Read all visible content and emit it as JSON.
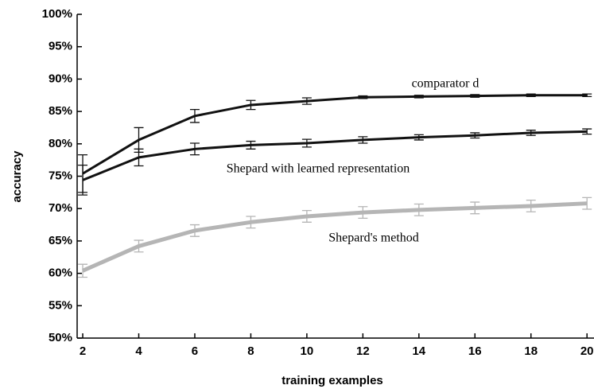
{
  "chart_data": {
    "type": "line",
    "xlabel": "training examples",
    "ylabel": "accuracy",
    "x": [
      2,
      4,
      6,
      8,
      10,
      12,
      14,
      16,
      18,
      20
    ],
    "series": [
      {
        "name": "comparator d",
        "color": "#111111",
        "values": [
          75.4,
          80.6,
          84.3,
          86.0,
          86.6,
          87.2,
          87.3,
          87.4,
          87.5,
          87.5
        ],
        "errors": [
          2.9,
          1.9,
          1.0,
          0.7,
          0.5,
          0.2,
          0.2,
          0.2,
          0.2,
          0.2
        ]
      },
      {
        "name": "Shepard with learned representation",
        "color": "#111111",
        "values": [
          74.4,
          77.9,
          79.2,
          79.8,
          80.1,
          80.6,
          81.0,
          81.3,
          81.7,
          81.9
        ],
        "errors": [
          2.3,
          1.3,
          0.9,
          0.6,
          0.6,
          0.5,
          0.4,
          0.4,
          0.4,
          0.4
        ]
      },
      {
        "name": "Shepard's method",
        "color": "#b5b5b5",
        "values": [
          60.4,
          64.2,
          66.6,
          67.9,
          68.8,
          69.4,
          69.8,
          70.1,
          70.4,
          70.8
        ],
        "errors": [
          1.0,
          0.9,
          0.9,
          0.9,
          0.9,
          0.9,
          0.9,
          0.9,
          0.9,
          0.9
        ]
      }
    ],
    "xlim": [
      1.8,
      20.25
    ],
    "ylim": [
      50,
      100
    ],
    "xticks": [
      2,
      4,
      6,
      8,
      10,
      12,
      14,
      16,
      18,
      20
    ],
    "yticks": [
      {
        "value": 50,
        "label": "50%"
      },
      {
        "value": 55,
        "label": "55%"
      },
      {
        "value": 60,
        "label": "60%"
      },
      {
        "value": 65,
        "label": "65%"
      },
      {
        "value": 70,
        "label": "70%"
      },
      {
        "value": 75,
        "label": "75%"
      },
      {
        "value": 80,
        "label": "80%"
      },
      {
        "value": 85,
        "label": "85%"
      },
      {
        "value": 90,
        "label": "90%"
      },
      {
        "value": 95,
        "label": "95%"
      },
      {
        "value": 100,
        "label": "100%"
      }
    ]
  }
}
